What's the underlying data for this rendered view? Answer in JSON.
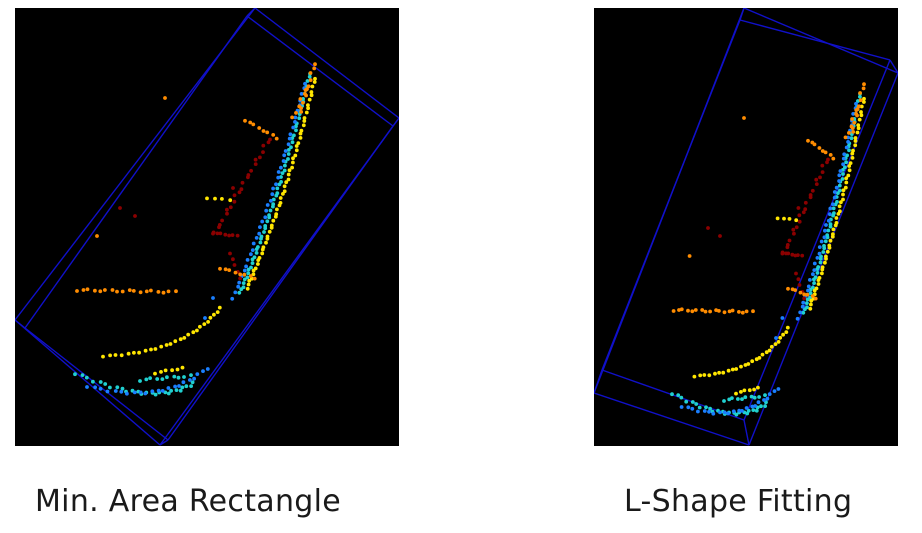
{
  "panels": [
    {
      "caption": "Min. Area Rectangle",
      "box_color": "#1010c8"
    },
    {
      "caption": "L-Shape Fitting",
      "box_color": "#1010c8"
    }
  ],
  "colors": {
    "background": "#000000",
    "point_dark_red": "#8b0000",
    "point_orange": "#ff8c00",
    "point_yellow": "#ffe600",
    "point_cyan": "#20d0d0",
    "point_blue": "#1a7fff"
  }
}
